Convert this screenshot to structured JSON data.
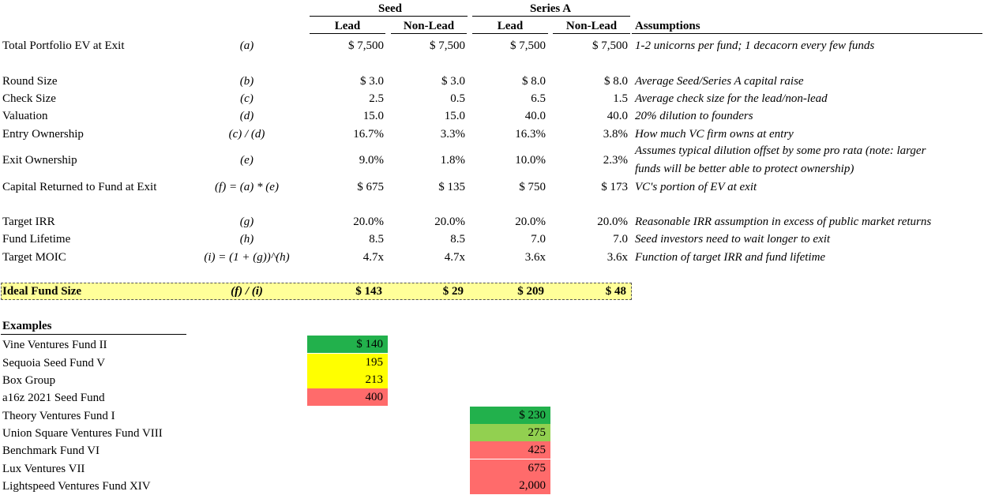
{
  "groups": {
    "seed": "Seed",
    "series_a": "Series A"
  },
  "columns": {
    "lead": "Lead",
    "non_lead": "Non-Lead",
    "assumptions": "Assumptions"
  },
  "rows": [
    {
      "label": "Total Portfolio EV at Exit",
      "formula": "(a)",
      "v": [
        "$ 7,500",
        "$ 7,500",
        "$ 7,500",
        "$ 7,500"
      ],
      "note": "1-2 unicorns per fund; 1 decacorn every few funds"
    },
    {
      "label": "Round Size",
      "formula": "(b)",
      "v": [
        "$ 3.0",
        "$ 3.0",
        "$ 8.0",
        "$ 8.0"
      ],
      "note": "Average Seed/Series A capital raise"
    },
    {
      "label": "Check Size",
      "formula": "(c)",
      "v": [
        "2.5",
        "0.5",
        "6.5",
        "1.5"
      ],
      "note": "Average check size for the lead/non-lead"
    },
    {
      "label": "Valuation",
      "formula": "(d)",
      "v": [
        "15.0",
        "15.0",
        "40.0",
        "40.0"
      ],
      "note": "20% dilution to founders"
    },
    {
      "label": "Entry Ownership",
      "formula": "(c) / (d)",
      "v": [
        "16.7%",
        "3.3%",
        "16.3%",
        "3.8%"
      ],
      "note": "How much VC firm owns at entry"
    },
    {
      "label": "Exit Ownership",
      "formula": "(e)",
      "v": [
        "9.0%",
        "1.8%",
        "10.0%",
        "2.3%"
      ],
      "note": "Assumes typical dilution offset by some pro rata (note: larger",
      "note2": "funds will be better able to protect ownership)"
    },
    {
      "label": "Capital Returned to Fund at Exit",
      "formula": "(f) = (a) * (e)",
      "v": [
        "$ 675",
        "$ 135",
        "$ 750",
        "$ 173"
      ],
      "note": "VC's portion of EV at exit"
    },
    {
      "label": "Target IRR",
      "formula": "(g)",
      "v": [
        "20.0%",
        "20.0%",
        "20.0%",
        "20.0%"
      ],
      "note": "Reasonable IRR assumption in excess of public market returns"
    },
    {
      "label": "Fund Lifetime",
      "formula": "(h)",
      "v": [
        "8.5",
        "8.5",
        "7.0",
        "7.0"
      ],
      "note": "Seed investors need to wait longer to exit"
    },
    {
      "label": "Target MOIC",
      "formula": "(i) = (1 + (g))^(h)",
      "v": [
        "4.7x",
        "4.7x",
        "3.6x",
        "3.6x"
      ],
      "note": "Function of target IRR and fund lifetime"
    }
  ],
  "ideal": {
    "label": "Ideal Fund Size",
    "formula": "(f) / (i)",
    "v": [
      "$ 143",
      "$ 29",
      "$ 209",
      "$ 48"
    ]
  },
  "examples": {
    "title": "Examples",
    "items": [
      {
        "name": "Vine Ventures Fund II",
        "value": "$ 140",
        "color": "#22b14c"
      },
      {
        "name": "Sequoia Seed Fund V",
        "value": "195",
        "color": "#ffff00"
      },
      {
        "name": "Box Group",
        "value": "213",
        "color": "#ffff00"
      },
      {
        "name": "a16z 2021 Seed Fund",
        "value": "400",
        "color": "#ff6b6b"
      },
      {
        "name": "Theory Ventures Fund I",
        "value": "$ 230",
        "color": "#22b14c"
      },
      {
        "name": "Union Square Ventures Fund VIII",
        "value": "275",
        "color": "#92d050"
      },
      {
        "name": "Benchmark Fund VI",
        "value": "425",
        "color": "#ff6b6b"
      },
      {
        "name": "Lux Ventures VII",
        "value": "675",
        "color": "#ff6b6b"
      },
      {
        "name": "Lightspeed Ventures Fund XIV",
        "value": "2,000",
        "color": "#ff6b6b"
      }
    ]
  }
}
